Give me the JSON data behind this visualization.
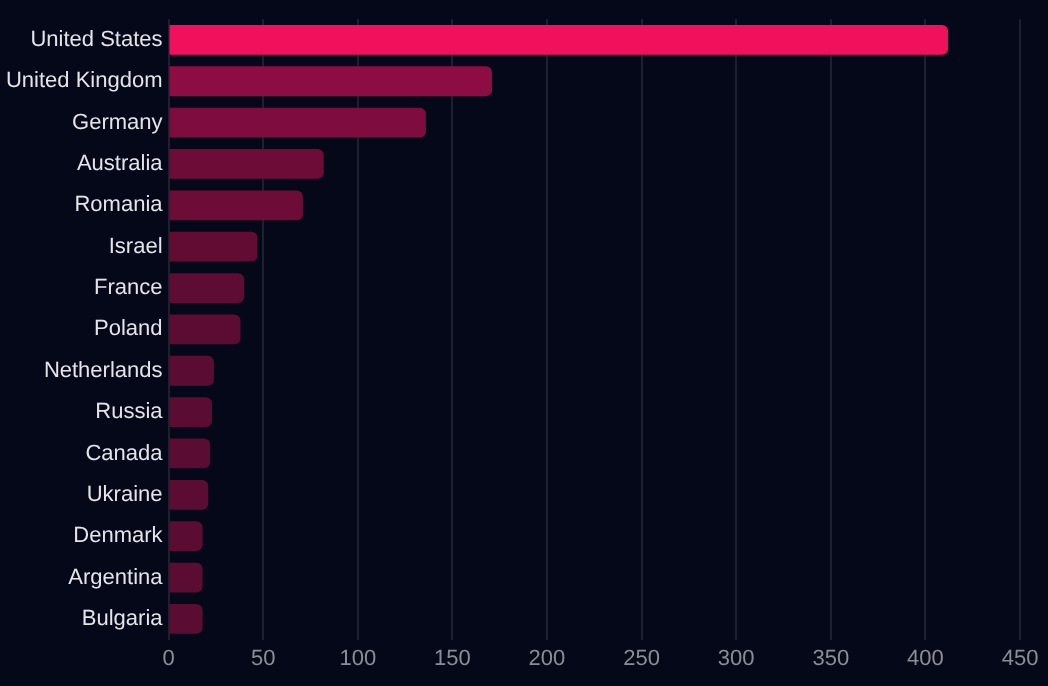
{
  "chart_data": {
    "type": "bar",
    "orientation": "horizontal",
    "categories": [
      "United States",
      "United Kingdom",
      "Germany",
      "Australia",
      "Romania",
      "Israel",
      "France",
      "Poland",
      "Netherlands",
      "Russia",
      "Canada",
      "Ukraine",
      "Denmark",
      "Argentina",
      "Bulgaria"
    ],
    "values": [
      412,
      171,
      136,
      82,
      71,
      47,
      40,
      38,
      24,
      23,
      22,
      21,
      18,
      18,
      18
    ],
    "colors": [
      "#f0105c",
      "#8e0c44",
      "#7e0c3e",
      "#6e0c38",
      "#6c0c37",
      "#620c34",
      "#5e0c33",
      "#5c0c33",
      "#5a0c32",
      "#5a0c32",
      "#5a0c32",
      "#5a0c32",
      "#5a0c32",
      "#5a0c32",
      "#5a0c32"
    ],
    "xlim": [
      0,
      450
    ],
    "xticks": [
      0,
      50,
      100,
      150,
      200,
      250,
      300,
      350,
      400,
      450
    ],
    "grid": "x",
    "legend": false
  }
}
